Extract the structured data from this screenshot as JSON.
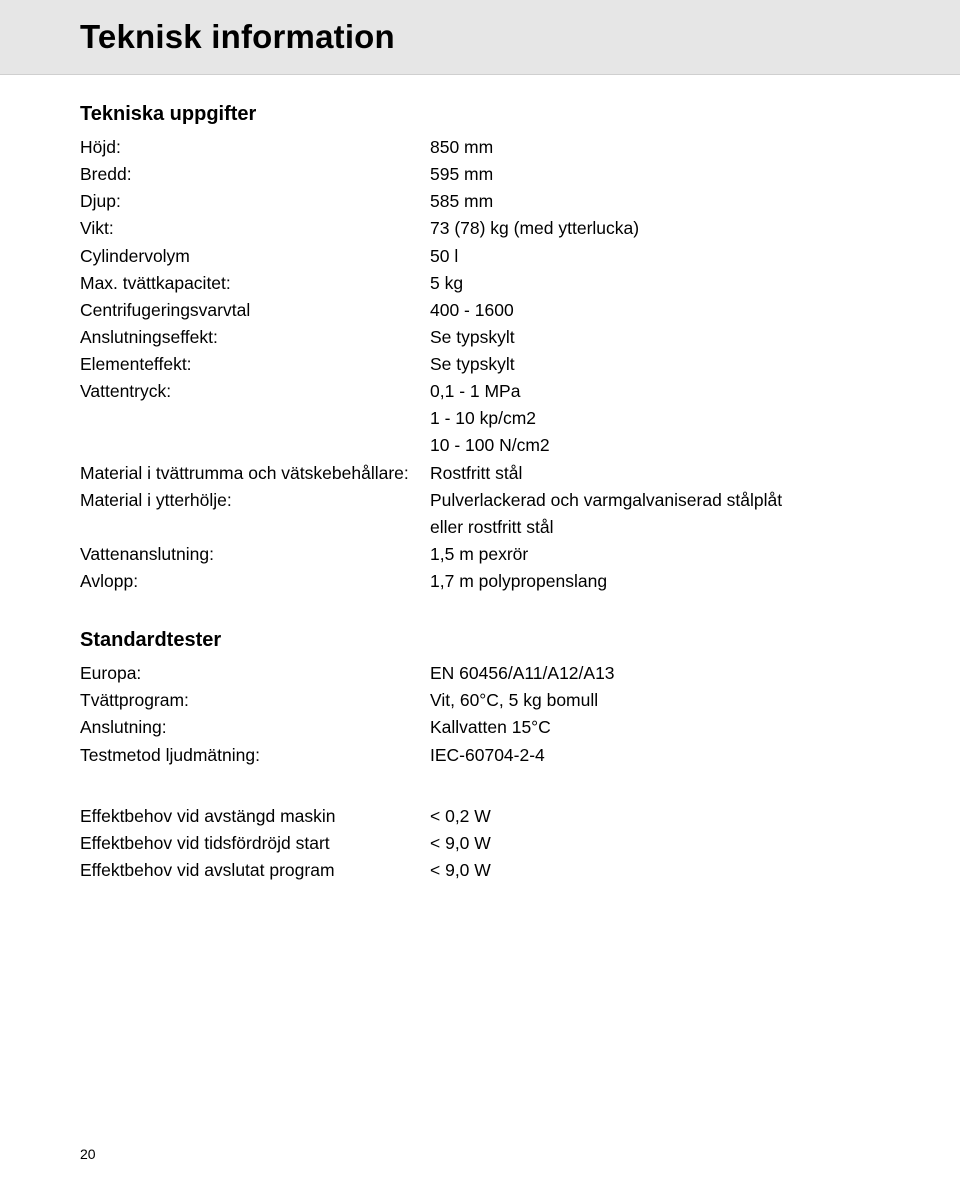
{
  "page": {
    "title": "Teknisk information",
    "number": "20"
  },
  "sections": {
    "tech": {
      "heading": "Tekniska uppgifter",
      "rows": {
        "height": {
          "label": "Höjd:",
          "value": "850 mm"
        },
        "width": {
          "label": "Bredd:",
          "value": "595 mm"
        },
        "depth": {
          "label": "Djup:",
          "value": "585 mm"
        },
        "weight": {
          "label": "Vikt:",
          "value": "73 (78) kg (med ytterlucka)"
        },
        "cylvol": {
          "label": "Cylindervolym",
          "value": "50 l"
        },
        "maxcap": {
          "label": "Max. tvättkapacitet:",
          "value": "5 kg"
        },
        "spin": {
          "label": "Centrifugeringsvarvtal",
          "value": "400 - 1600"
        },
        "connpower": {
          "label": "Anslutningseffekt:",
          "value": "Se typskylt"
        },
        "elempower": {
          "label": "Elementeffekt:",
          "value": "Se typskylt"
        },
        "waterpress": {
          "label": "Vattentryck:",
          "value": "0,1 - 1 MPa",
          "extra1": "1 - 10 kp/cm2",
          "extra2": "10 - 100 N/cm2"
        },
        "drummat": {
          "label": "Material i tvättrumma och vätskebehållare:",
          "value": "Rostfritt stål"
        },
        "casingmat": {
          "label": "Material i ytterhölje:",
          "value": "Pulverlackerad och varmgalvaniserad stålplåt",
          "extra1": "eller rostfritt stål"
        },
        "waterconn": {
          "label": "Vattenanslutning:",
          "value": "1,5 m pexrör"
        },
        "drain": {
          "label": "Avlopp:",
          "value": "1,7 m polypropenslang"
        }
      }
    },
    "tests": {
      "heading": "Standardtester",
      "rows": {
        "europe": {
          "label": "Europa:",
          "value": "EN 60456/A11/A12/A13"
        },
        "program": {
          "label": "Tvättprogram:",
          "value": "Vit, 60°C, 5 kg bomull"
        },
        "conn": {
          "label": "Anslutning:",
          "value": "Kallvatten 15°C"
        },
        "sound": {
          "label": "Testmetod ljudmätning:",
          "value": "IEC-60704-2-4"
        }
      }
    },
    "power": {
      "rows": {
        "off": {
          "label": "Effektbehov vid avstängd maskin",
          "value": "< 0,2 W"
        },
        "delay": {
          "label": "Effektbehov vid tidsfördröjd start",
          "value": "< 9,0 W"
        },
        "end": {
          "label": "Effektbehov vid avslutat program",
          "value": "< 9,0 W"
        }
      }
    }
  }
}
